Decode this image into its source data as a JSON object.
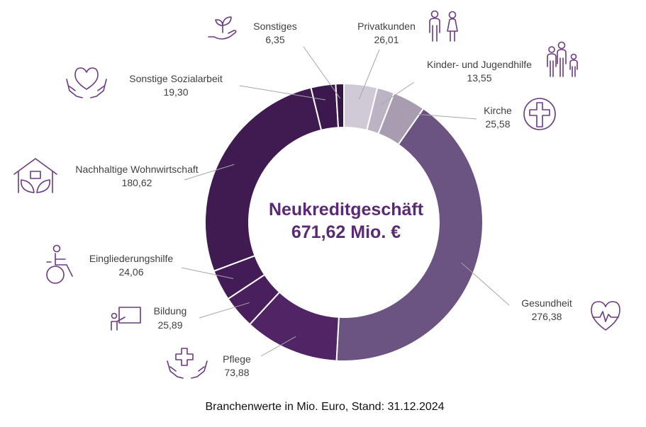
{
  "chart_data": {
    "type": "pie",
    "variant": "donut",
    "title": "Neukreditgeschäft",
    "total_label": "671,62 Mio. €",
    "footnote": "Branchenwerte in Mio. Euro, Stand: 31.12.2024",
    "segments": [
      {
        "name": "Privatkunden",
        "value": 26.01,
        "label": "26,01",
        "color": "#d0cad6",
        "icon": "family-icon"
      },
      {
        "name": "Kinder- und Jugendhilfe",
        "value": 13.55,
        "label": "13,55",
        "color": "#bcb4c4",
        "icon": "children-icon"
      },
      {
        "name": "Kirche",
        "value": 25.58,
        "label": "25,58",
        "color": "#a89db0",
        "icon": "church-cross-icon"
      },
      {
        "name": "Gesundheit",
        "value": 276.38,
        "label": "276,38",
        "color": "#6b5382",
        "icon": "heart-pulse-icon"
      },
      {
        "name": "Pflege",
        "value": 73.88,
        "label": "73,88",
        "color": "#512465",
        "icon": "care-hands-cross-icon"
      },
      {
        "name": "Bildung",
        "value": 25.89,
        "label": "25,89",
        "color": "#4a1f5e",
        "icon": "teacher-board-icon"
      },
      {
        "name": "Eingliederungshilfe",
        "value": 24.06,
        "label": "24,06",
        "color": "#431c57",
        "icon": "wheelchair-icon"
      },
      {
        "name": "Nachhaltige Wohnwirtschaft",
        "value": 180.62,
        "label": "180,62",
        "color": "#3f1b52",
        "icon": "house-leaves-icon"
      },
      {
        "name": "Sonstige Sozialarbeit",
        "value": 19.3,
        "label": "19,30",
        "color": "#3b184d",
        "icon": "heart-hands-icon"
      },
      {
        "name": "Sonstiges",
        "value": 6.35,
        "label": "6,35",
        "color": "#351545",
        "icon": "plant-hand-icon"
      }
    ]
  }
}
